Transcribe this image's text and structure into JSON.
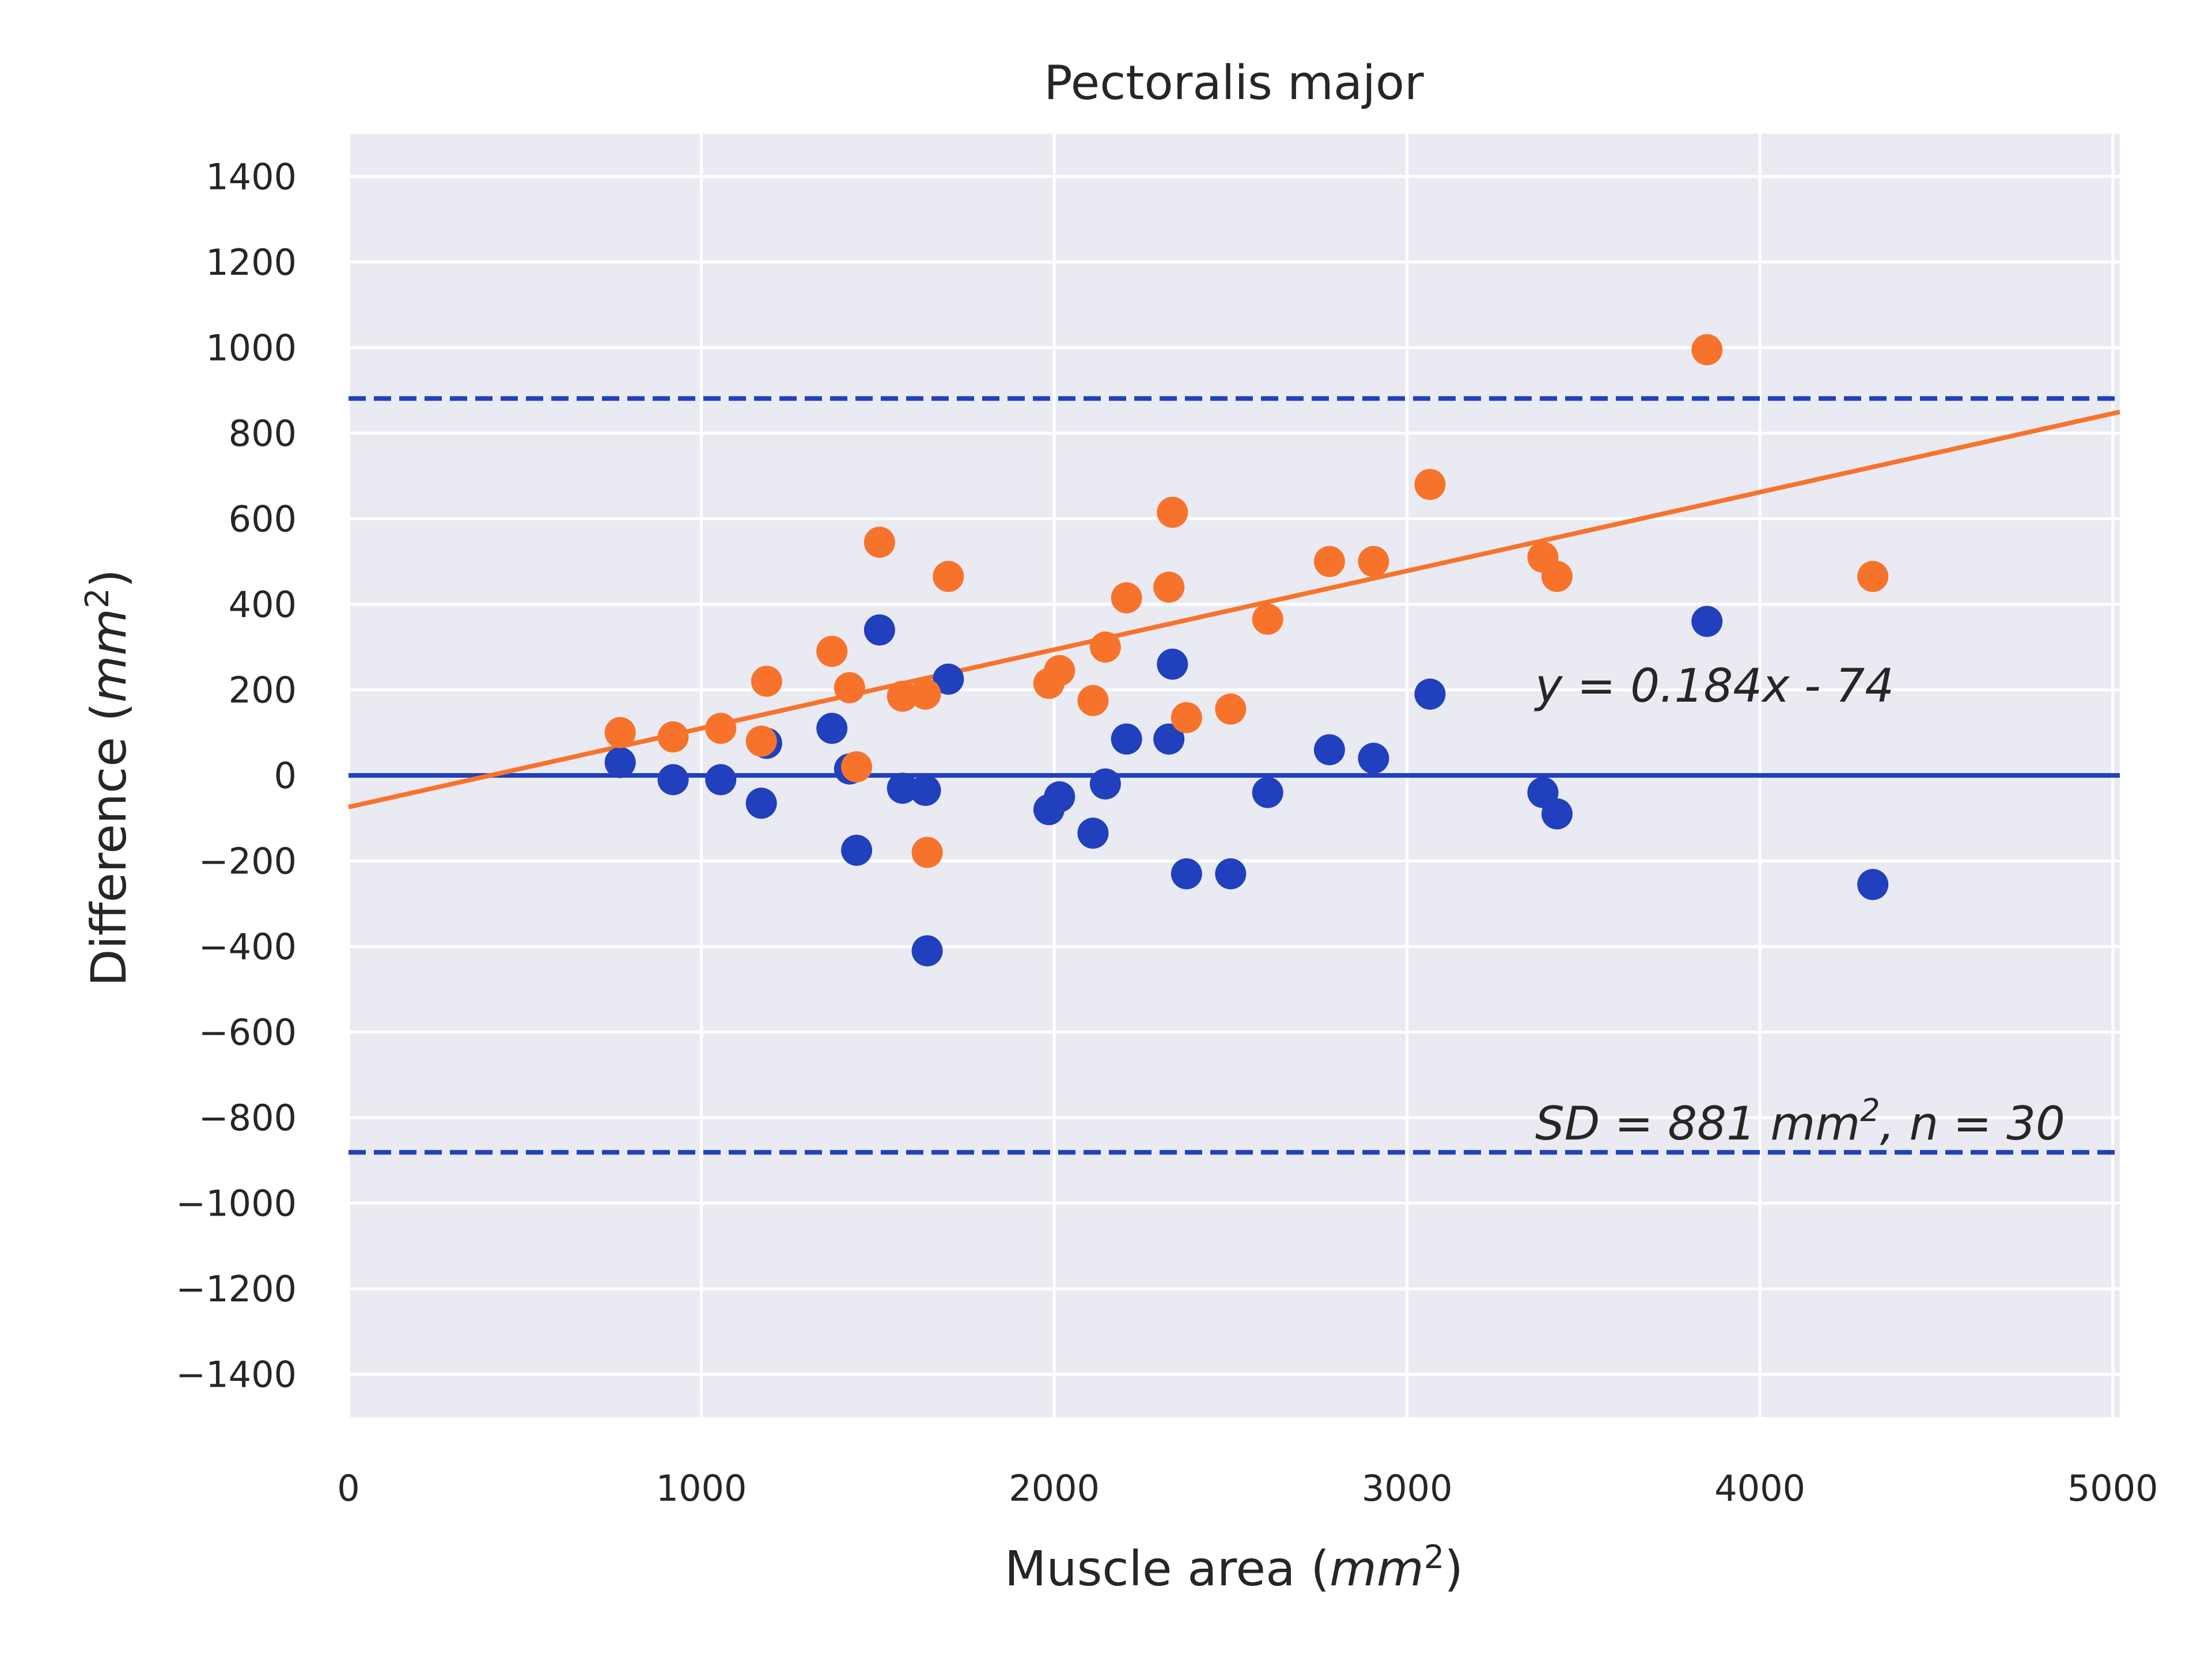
{
  "chart_data": {
    "type": "scatter",
    "title": "Pectoralis major",
    "xlabel": "Muscle area",
    "ylabel": "Difference",
    "axis_unit": "mm",
    "axis_unit_exp": "2",
    "xlim": [
      0,
      5020
    ],
    "ylim": [
      -1500,
      1500
    ],
    "xticks": [
      "0",
      "1000",
      "2000",
      "3000",
      "4000",
      "5000"
    ],
    "xtick_values": [
      0,
      1000,
      2000,
      3000,
      4000,
      5000
    ],
    "yticks": [
      "1400",
      "1200",
      "1000",
      "800",
      "600",
      "400",
      "200",
      "0",
      "−200",
      "−400",
      "−600",
      "−800",
      "−1000",
      "−1200",
      "−1400"
    ],
    "ytick_values": [
      1400,
      1200,
      1000,
      800,
      600,
      400,
      200,
      0,
      -200,
      -400,
      -600,
      -800,
      -1000,
      -1200,
      -1400
    ],
    "grid": true,
    "background": "#eaeaf2",
    "colors": {
      "blue": "#2140bd",
      "orange": "#f7732c"
    },
    "series": [
      {
        "color": "blue",
        "points": [
          [
            770,
            30
          ],
          [
            920,
            -10
          ],
          [
            1055,
            -10
          ],
          [
            1170,
            -65
          ],
          [
            1185,
            75
          ],
          [
            1370,
            110
          ],
          [
            1420,
            15
          ],
          [
            1440,
            -175
          ],
          [
            1505,
            340
          ],
          [
            1570,
            -30
          ],
          [
            1635,
            -35
          ],
          [
            1640,
            -410
          ],
          [
            1700,
            225
          ],
          [
            1985,
            -80
          ],
          [
            2015,
            -50
          ],
          [
            2110,
            -135
          ],
          [
            2145,
            -20
          ],
          [
            2205,
            85
          ],
          [
            2325,
            85
          ],
          [
            2335,
            260
          ],
          [
            2375,
            -230
          ],
          [
            2500,
            -230
          ],
          [
            2605,
            -40
          ],
          [
            2780,
            60
          ],
          [
            2905,
            40
          ],
          [
            3065,
            190
          ],
          [
            3385,
            -40
          ],
          [
            3425,
            -90
          ],
          [
            3850,
            360
          ],
          [
            4320,
            -255
          ]
        ]
      },
      {
        "color": "orange",
        "points": [
          [
            770,
            100
          ],
          [
            920,
            90
          ],
          [
            1055,
            110
          ],
          [
            1170,
            80
          ],
          [
            1185,
            220
          ],
          [
            1370,
            290
          ],
          [
            1420,
            205
          ],
          [
            1440,
            20
          ],
          [
            1505,
            545
          ],
          [
            1570,
            185
          ],
          [
            1635,
            190
          ],
          [
            1640,
            -180
          ],
          [
            1700,
            465
          ],
          [
            1985,
            215
          ],
          [
            2015,
            245
          ],
          [
            2110,
            175
          ],
          [
            2145,
            300
          ],
          [
            2205,
            415
          ],
          [
            2325,
            440
          ],
          [
            2335,
            615
          ],
          [
            2375,
            135
          ],
          [
            2500,
            155
          ],
          [
            2605,
            365
          ],
          [
            2780,
            500
          ],
          [
            2905,
            500
          ],
          [
            3065,
            680
          ],
          [
            3385,
            510
          ],
          [
            3425,
            465
          ],
          [
            3850,
            995
          ],
          [
            4320,
            465
          ]
        ]
      }
    ],
    "reference_lines": {
      "mean": 0,
      "upper_limit": 881,
      "lower_limit": -881
    },
    "regression": {
      "slope": 0.184,
      "intercept": -74
    },
    "annotations": {
      "regression_text": "y = 0.184x - 74",
      "sd_text_prefix": "SD = 881 ",
      "sd_unit": "mm",
      "sd_unit_exp": "2",
      "sd_text_suffix": ", n = 30"
    }
  }
}
